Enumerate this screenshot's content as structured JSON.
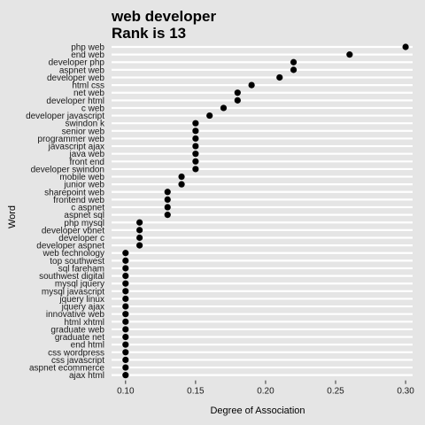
{
  "chart_data": {
    "type": "scatter",
    "title_lines": [
      "web developer",
      "Rank is 13"
    ],
    "xlabel": "Degree of Association",
    "ylabel": "Word",
    "xlim": [
      0.09,
      0.305
    ],
    "xticks": [
      0.1,
      0.15,
      0.2,
      0.25,
      0.3
    ],
    "xtick_labels": [
      "0.10",
      "0.15",
      "0.20",
      "0.25",
      "0.30"
    ],
    "grid": "horizontal",
    "background": "#e5e5e5",
    "gridline_color": "#ffffff",
    "point_color": "#000000",
    "points": [
      {
        "word": "php web",
        "value": 0.3
      },
      {
        "word": "end web",
        "value": 0.26
      },
      {
        "word": "developer php",
        "value": 0.22
      },
      {
        "word": "aspnet web",
        "value": 0.22
      },
      {
        "word": "developer web",
        "value": 0.21
      },
      {
        "word": "html css",
        "value": 0.19
      },
      {
        "word": "net web",
        "value": 0.18
      },
      {
        "word": "developer html",
        "value": 0.18
      },
      {
        "word": "c web",
        "value": 0.17
      },
      {
        "word": "developer javascript",
        "value": 0.16
      },
      {
        "word": "swindon k",
        "value": 0.15
      },
      {
        "word": "senior web",
        "value": 0.15
      },
      {
        "word": "programmer web",
        "value": 0.15
      },
      {
        "word": "javascript ajax",
        "value": 0.15
      },
      {
        "word": "java web",
        "value": 0.15
      },
      {
        "word": "front end",
        "value": 0.15
      },
      {
        "word": "developer swindon",
        "value": 0.15
      },
      {
        "word": "mobile web",
        "value": 0.14
      },
      {
        "word": "junior web",
        "value": 0.14
      },
      {
        "word": "sharepoint web",
        "value": 0.13
      },
      {
        "word": "frontend web",
        "value": 0.13
      },
      {
        "word": "c aspnet",
        "value": 0.13
      },
      {
        "word": "aspnet sql",
        "value": 0.13
      },
      {
        "word": "php mysql",
        "value": 0.11
      },
      {
        "word": "developer vbnet",
        "value": 0.11
      },
      {
        "word": "developer c",
        "value": 0.11
      },
      {
        "word": "developer aspnet",
        "value": 0.11
      },
      {
        "word": "web technology",
        "value": 0.1
      },
      {
        "word": "top southwest",
        "value": 0.1
      },
      {
        "word": "sql fareham",
        "value": 0.1
      },
      {
        "word": "southwest digital",
        "value": 0.1
      },
      {
        "word": "mysql jquery",
        "value": 0.1
      },
      {
        "word": "mysql javascript",
        "value": 0.1
      },
      {
        "word": "jquery linux",
        "value": 0.1
      },
      {
        "word": "jquery ajax",
        "value": 0.1
      },
      {
        "word": "innovative web",
        "value": 0.1
      },
      {
        "word": "html xhtml",
        "value": 0.1
      },
      {
        "word": "graduate web",
        "value": 0.1
      },
      {
        "word": "graduate net",
        "value": 0.1
      },
      {
        "word": "end html",
        "value": 0.1
      },
      {
        "word": "css wordpress",
        "value": 0.1
      },
      {
        "word": "css javascript",
        "value": 0.1
      },
      {
        "word": "aspnet ecommerce",
        "value": 0.1
      },
      {
        "word": "ajax html",
        "value": 0.1
      }
    ]
  }
}
